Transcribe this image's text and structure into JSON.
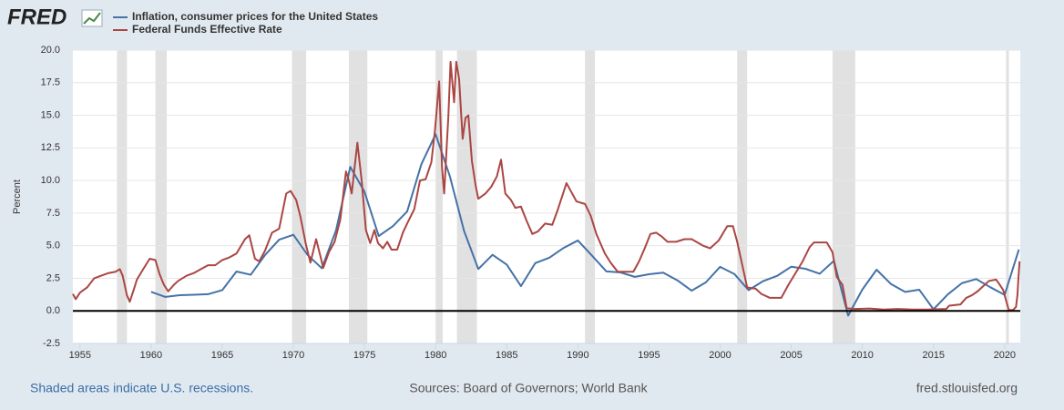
{
  "chart_data": {
    "type": "line",
    "logo": "FRED",
    "y_label": "Percent",
    "footnote": "Shaded areas indicate U.S. recessions.",
    "source": "Sources: Board of Governors; World Bank",
    "url": "fred.stlouisfed.org",
    "xlim": [
      1954.5,
      2021.1
    ],
    "xticks": [
      1955,
      1960,
      1965,
      1970,
      1975,
      1980,
      1985,
      1990,
      1995,
      2000,
      2005,
      2010,
      2015,
      2020
    ],
    "ylim": [
      -2.5,
      20
    ],
    "yticks": [
      -2.5,
      {
        "value": 0,
        "label": "0.0"
      },
      2.5,
      {
        "value": 5,
        "label": "5.0"
      },
      7.5,
      {
        "value": 10,
        "label": "10.0"
      },
      12.5,
      {
        "value": 15,
        "label": "15.0"
      },
      17.5,
      {
        "value": 20,
        "label": "20.0"
      }
    ],
    "grid": true,
    "recessions": [
      [
        1957.6,
        1958.3
      ],
      [
        1960.3,
        1961.1
      ],
      [
        1969.9,
        1970.9
      ],
      [
        1973.9,
        1975.2
      ],
      [
        1980.0,
        1980.5
      ],
      [
        1981.5,
        1982.9
      ],
      [
        1990.5,
        1991.2
      ],
      [
        2001.2,
        2001.9
      ],
      [
        2007.9,
        2009.5
      ],
      [
        2020.1,
        2020.3
      ]
    ],
    "recession_color": "#e1e1e1",
    "series": [
      {
        "name": "Inflation, consumer prices for the United States",
        "color": "#4572a7",
        "x": [
          1960,
          1961,
          1962,
          1963,
          1964,
          1965,
          1966,
          1967,
          1968,
          1969,
          1970,
          1971,
          1972,
          1973,
          1974,
          1975,
          1976,
          1977,
          1978,
          1979,
          1980,
          1981,
          1982,
          1983,
          1984,
          1985,
          1986,
          1987,
          1988,
          1989,
          1990,
          1991,
          1992,
          1993,
          1994,
          1995,
          1996,
          1997,
          1998,
          1999,
          2000,
          2001,
          2002,
          2003,
          2004,
          2005,
          2006,
          2007,
          2008,
          2009,
          2010,
          2011,
          2012,
          2013,
          2014,
          2015,
          2016,
          2017,
          2018,
          2019,
          2020,
          2021
        ],
        "values": [
          1.46,
          1.07,
          1.2,
          1.24,
          1.28,
          1.59,
          3.02,
          2.77,
          4.27,
          5.46,
          5.84,
          4.29,
          3.27,
          6.18,
          11.05,
          9.14,
          5.74,
          6.5,
          7.63,
          11.25,
          13.55,
          10.33,
          6.13,
          3.21,
          4.3,
          3.55,
          1.9,
          3.66,
          4.08,
          4.83,
          5.4,
          4.23,
          3.03,
          2.95,
          2.61,
          2.81,
          2.93,
          2.34,
          1.55,
          2.19,
          3.38,
          2.83,
          1.59,
          2.27,
          2.68,
          3.39,
          3.23,
          2.85,
          3.84,
          -0.36,
          1.64,
          3.16,
          2.07,
          1.46,
          1.62,
          0.12,
          1.26,
          2.13,
          2.44,
          1.81,
          1.23,
          4.7
        ]
      },
      {
        "name": "Federal Funds Effective Rate",
        "color": "#aa4643",
        "x": [
          1954.5,
          1954.7,
          1955,
          1955.5,
          1956,
          1956.5,
          1957,
          1957.5,
          1957.8,
          1958,
          1958.3,
          1958.5,
          1958.8,
          1959,
          1959.5,
          1959.9,
          1960.3,
          1960.6,
          1960.9,
          1961.2,
          1961.6,
          1961.9,
          1962.5,
          1963,
          1963.5,
          1964,
          1964.5,
          1965,
          1965.5,
          1966,
          1966.6,
          1966.9,
          1967.3,
          1967.6,
          1968,
          1968.5,
          1969,
          1969.5,
          1969.8,
          1970.2,
          1970.5,
          1970.9,
          1971.2,
          1971.6,
          1971.9,
          1972.1,
          1972.5,
          1972.9,
          1973.3,
          1973.7,
          1973.9,
          1974.1,
          1974.5,
          1974.8,
          1975.1,
          1975.4,
          1975.7,
          1975.95,
          1976.3,
          1976.6,
          1976.9,
          1977.3,
          1977.7,
          1978,
          1978.5,
          1978.9,
          1979.3,
          1979.7,
          1979.95,
          1980.25,
          1980.45,
          1980.6,
          1980.9,
          1981.05,
          1981.3,
          1981.45,
          1981.65,
          1981.9,
          1982.1,
          1982.3,
          1982.55,
          1982.8,
          1983,
          1983.5,
          1983.9,
          1984.3,
          1984.6,
          1984.9,
          1985.3,
          1985.6,
          1986,
          1986.4,
          1986.8,
          1987.2,
          1987.7,
          1988.2,
          1988.6,
          1989.2,
          1989.5,
          1989.9,
          1990.5,
          1990.9,
          1991.3,
          1991.9,
          1992.3,
          1992.8,
          1993.5,
          1993.9,
          1994.3,
          1994.7,
          1995.1,
          1995.5,
          1995.9,
          1996.3,
          1996.9,
          1997.5,
          1998,
          1998.8,
          1999.3,
          1999.9,
          2000.5,
          2000.9,
          2001.2,
          2001.5,
          2001.9,
          2002.5,
          2002.9,
          2003.5,
          2004.3,
          2004.8,
          2005.3,
          2005.8,
          2006.3,
          2006.6,
          2007.5,
          2007.9,
          2008.2,
          2008.6,
          2008.9,
          2009.5,
          2010.5,
          2011.5,
          2012.5,
          2013.5,
          2014.5,
          2015.9,
          2016.1,
          2016.9,
          2017.3,
          2017.7,
          2018.1,
          2018.5,
          2018.9,
          2019.4,
          2019.6,
          2019.9,
          2020.15,
          2020.3,
          2020.6,
          2020.8,
          2020.9,
          2020.97,
          2021.05
        ],
        "values": [
          1.3,
          0.9,
          1.4,
          1.8,
          2.5,
          2.7,
          2.9,
          3.0,
          3.2,
          2.7,
          1.2,
          0.7,
          1.7,
          2.4,
          3.3,
          4.0,
          3.9,
          2.8,
          2.0,
          1.5,
          2.0,
          2.3,
          2.7,
          2.9,
          3.2,
          3.5,
          3.5,
          3.9,
          4.1,
          4.4,
          5.5,
          5.8,
          4.0,
          3.8,
          4.6,
          6.0,
          6.3,
          9.0,
          9.2,
          8.5,
          7.2,
          5.0,
          3.7,
          5.5,
          4.2,
          3.3,
          4.5,
          5.3,
          7.0,
          10.7,
          10.0,
          9.0,
          12.9,
          10.0,
          6.2,
          5.2,
          6.2,
          5.2,
          4.8,
          5.3,
          4.7,
          4.7,
          6.0,
          6.7,
          7.8,
          10.0,
          10.1,
          11.4,
          13.8,
          17.6,
          11.0,
          9.0,
          15.0,
          19.1,
          16.0,
          19.1,
          17.8,
          13.2,
          14.8,
          15.0,
          11.5,
          9.7,
          8.6,
          9.0,
          9.5,
          10.3,
          11.6,
          9.0,
          8.5,
          7.9,
          8.0,
          6.9,
          5.9,
          6.1,
          6.7,
          6.6,
          7.8,
          9.8,
          9.2,
          8.4,
          8.2,
          7.3,
          5.9,
          4.4,
          3.7,
          3.0,
          3.0,
          3.0,
          3.8,
          4.8,
          5.9,
          6.0,
          5.7,
          5.3,
          5.3,
          5.5,
          5.5,
          5.0,
          4.8,
          5.4,
          6.5,
          6.5,
          5.3,
          3.8,
          1.8,
          1.7,
          1.3,
          1.0,
          1.0,
          2.0,
          2.9,
          3.8,
          4.9,
          5.25,
          5.25,
          4.5,
          2.6,
          2.0,
          0.2,
          0.15,
          0.18,
          0.1,
          0.15,
          0.1,
          0.1,
          0.15,
          0.4,
          0.5,
          1.0,
          1.2,
          1.5,
          1.9,
          2.3,
          2.4,
          2.1,
          1.6,
          0.6,
          0.05,
          0.08,
          0.3,
          1.2,
          2.5,
          3.8
        ]
      }
    ]
  }
}
